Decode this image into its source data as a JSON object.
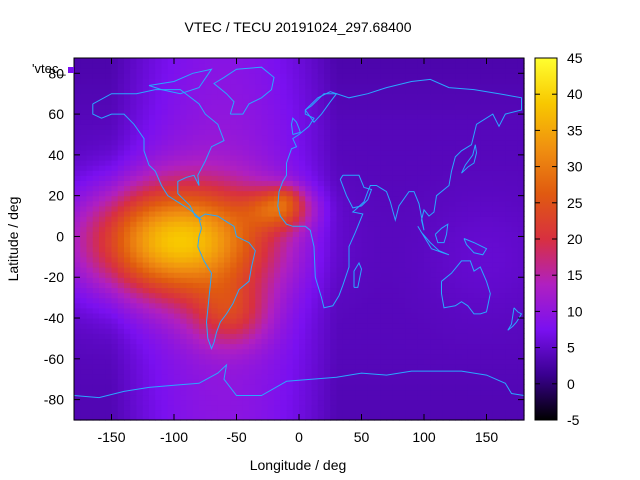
{
  "chart_data": {
    "type": "heatmap",
    "title": "VTEC / TECU 20191024_297.68400",
    "xlabel": "Longitude / deg",
    "ylabel": "Latitude / deg",
    "key_label": "'vtec_",
    "xlim": [
      -180,
      180
    ],
    "ylim": [
      -90,
      87.5
    ],
    "x_ticks": [
      -150,
      -100,
      -50,
      0,
      50,
      100,
      150
    ],
    "y_ticks": [
      -80,
      -60,
      -40,
      -20,
      0,
      20,
      40,
      60,
      80
    ],
    "colorbar": {
      "range": [
        -5,
        45
      ],
      "ticks": [
        -5,
        0,
        5,
        10,
        15,
        20,
        25,
        30,
        35,
        40,
        45
      ],
      "palette": [
        "#000000",
        "#3a0090",
        "#7a10f0",
        "#b020c0",
        "#d83040",
        "#e05a10",
        "#f09010",
        "#f8c800",
        "#ffff30"
      ]
    },
    "grid": false,
    "legend": "top-left",
    "overlay": "continent outlines",
    "anomaly": {
      "peak_lon": -100,
      "peak_lat": -2,
      "peak_value": 38,
      "lon_extent_west": -180,
      "lon_extent_east": 15,
      "lat_extent_south": -60,
      "lat_extent_north": 30,
      "background_day": 10,
      "background_night": 4
    }
  },
  "colors": {
    "coastline": "#29a8ff"
  }
}
